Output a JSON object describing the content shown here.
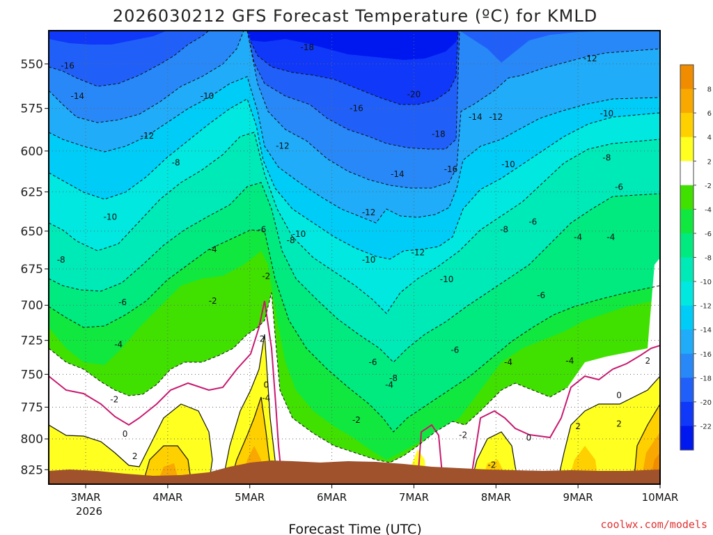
{
  "chart_data": {
    "type": "heatmap",
    "title": "2026030212 GFS Forecast Temperature (ºC) for KMLD",
    "xlabel": "Forecast Time (UTC)",
    "ylabel": "",
    "y_ticks": [
      550,
      575,
      600,
      625,
      650,
      675,
      700,
      725,
      750,
      775,
      800,
      825
    ],
    "y_ticklabels": [
      "550",
      "575",
      "600",
      "625",
      "650",
      "675",
      "700",
      "725",
      "750",
      "775",
      "800",
      "825"
    ],
    "ylim": [
      837,
      532
    ],
    "y_scale": "pressure (hPa), decreasing upward",
    "x_ticks": [
      "3MAR",
      "4MAR",
      "5MAR",
      "6MAR",
      "7MAR",
      "8MAR",
      "9MAR",
      "10MAR"
    ],
    "x_year_label": "2026",
    "xlim_days": [
      2.55,
      10.0
    ],
    "grid": true,
    "colorbar": {
      "ticks": [
        "8",
        "6",
        "4",
        "2",
        "-2",
        "-4",
        "-6",
        "-8",
        "-10",
        "-12",
        "-14",
        "-16",
        "-18",
        "-20",
        "-22"
      ],
      "bands": [
        {
          "range": [
            8,
            10
          ],
          "color": "#f08c00"
        },
        {
          "range": [
            6,
            8
          ],
          "color": "#f8a800"
        },
        {
          "range": [
            4,
            6
          ],
          "color": "#ffd000"
        },
        {
          "range": [
            2,
            4
          ],
          "color": "#ffff20"
        },
        {
          "range": [
            -2,
            2
          ],
          "color": "#ffffff"
        },
        {
          "range": [
            -4,
            -2
          ],
          "color": "#40e000"
        },
        {
          "range": [
            -6,
            -4
          ],
          "color": "#10e840"
        },
        {
          "range": [
            -8,
            -6
          ],
          "color": "#00ea80"
        },
        {
          "range": [
            -10,
            -8
          ],
          "color": "#00eab8"
        },
        {
          "range": [
            -12,
            -10
          ],
          "color": "#00e8e0"
        },
        {
          "range": [
            -14,
            -12
          ],
          "color": "#00ccf8"
        },
        {
          "range": [
            -16,
            -14
          ],
          "color": "#20acf8"
        },
        {
          "range": [
            -18,
            -16
          ],
          "color": "#2888f8"
        },
        {
          "range": [
            -20,
            -18
          ],
          "color": "#2060f8"
        },
        {
          "range": [
            -22,
            -20
          ],
          "color": "#1038f8"
        },
        {
          "range": [
            -24,
            -22
          ],
          "color": "#0018f0"
        }
      ]
    },
    "contour_labels": [
      {
        "text": "-16",
        "day": 2.78,
        "p": 551
      },
      {
        "text": "-14",
        "day": 2.9,
        "p": 568
      },
      {
        "text": "-12",
        "day": 3.75,
        "p": 591
      },
      {
        "text": "-10",
        "day": 3.3,
        "p": 641
      },
      {
        "text": "-8",
        "day": 2.7,
        "p": 669
      },
      {
        "text": "-6",
        "day": 3.45,
        "p": 698
      },
      {
        "text": "-4",
        "day": 3.4,
        "p": 728
      },
      {
        "text": "-2",
        "day": 3.35,
        "p": 769
      },
      {
        "text": "0",
        "day": 3.48,
        "p": 796
      },
      {
        "text": "2",
        "day": 3.6,
        "p": 814
      },
      {
        "text": "-10",
        "day": 4.48,
        "p": 568
      },
      {
        "text": "-8",
        "day": 4.1,
        "p": 607
      },
      {
        "text": "-4",
        "day": 4.55,
        "p": 662
      },
      {
        "text": "-2",
        "day": 4.55,
        "p": 697
      },
      {
        "text": "0",
        "day": 5.2,
        "p": 758
      },
      {
        "text": "-2",
        "day": 5.2,
        "p": 680
      },
      {
        "text": "2",
        "day": 5.15,
        "p": 724
      },
      {
        "text": "-4",
        "day": 5.2,
        "p": 768
      },
      {
        "text": "-6",
        "day": 5.15,
        "p": 649
      },
      {
        "text": "-8",
        "day": 5.5,
        "p": 656
      },
      {
        "text": "-10",
        "day": 5.6,
        "p": 652
      },
      {
        "text": "-12",
        "day": 5.4,
        "p": 597
      },
      {
        "text": "-18",
        "day": 5.7,
        "p": 541
      },
      {
        "text": "-16",
        "day": 6.3,
        "p": 575
      },
      {
        "text": "-14",
        "day": 6.8,
        "p": 614
      },
      {
        "text": "-12",
        "day": 6.45,
        "p": 638
      },
      {
        "text": "-10",
        "day": 6.45,
        "p": 669
      },
      {
        "text": "-6",
        "day": 6.5,
        "p": 741
      },
      {
        "text": "-4",
        "day": 6.7,
        "p": 758
      },
      {
        "text": "-2",
        "day": 6.3,
        "p": 785
      },
      {
        "text": "-8",
        "day": 6.75,
        "p": 753
      },
      {
        "text": "-20",
        "day": 7.0,
        "p": 567
      },
      {
        "text": "-18",
        "day": 7.3,
        "p": 590
      },
      {
        "text": "-16",
        "day": 7.45,
        "p": 611
      },
      {
        "text": "-12",
        "day": 7.05,
        "p": 664
      },
      {
        "text": "-10",
        "day": 7.4,
        "p": 682
      },
      {
        "text": "-6",
        "day": 7.5,
        "p": 732
      },
      {
        "text": "-2",
        "day": 7.6,
        "p": 797
      },
      {
        "text": "-14",
        "day": 7.75,
        "p": 580
      },
      {
        "text": "-12",
        "day": 8.0,
        "p": 580
      },
      {
        "text": "-10",
        "day": 8.15,
        "p": 608
      },
      {
        "text": "-8",
        "day": 8.1,
        "p": 649
      },
      {
        "text": "-6",
        "day": 8.45,
        "p": 644
      },
      {
        "text": "-6",
        "day": 8.55,
        "p": 693
      },
      {
        "text": "-4",
        "day": 8.15,
        "p": 741
      },
      {
        "text": "0",
        "day": 8.4,
        "p": 799
      },
      {
        "text": "-2",
        "day": 7.95,
        "p": 821
      },
      {
        "text": "-12",
        "day": 9.15,
        "p": 547
      },
      {
        "text": "-10",
        "day": 9.35,
        "p": 578
      },
      {
        "text": "-8",
        "day": 9.35,
        "p": 604
      },
      {
        "text": "-6",
        "day": 9.5,
        "p": 622
      },
      {
        "text": "-4",
        "day": 9.4,
        "p": 654
      },
      {
        "text": "-4",
        "day": 9.0,
        "p": 654
      },
      {
        "text": "-4",
        "day": 8.9,
        "p": 740
      },
      {
        "text": "0",
        "day": 9.5,
        "p": 766
      },
      {
        "text": "2",
        "day": 9.0,
        "p": 790
      },
      {
        "text": "2",
        "day": 9.5,
        "p": 788
      },
      {
        "text": "2",
        "day": 9.85,
        "p": 740
      }
    ]
  },
  "credit": "coolwx.com/models"
}
